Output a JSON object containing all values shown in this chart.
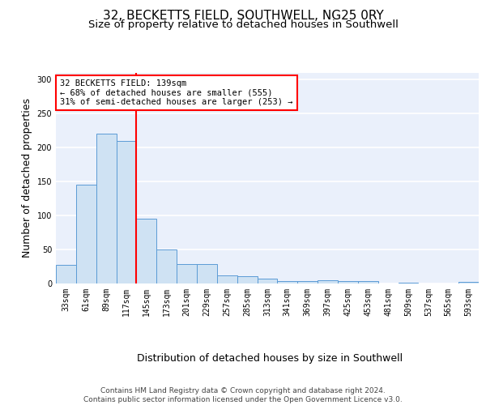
{
  "title1": "32, BECKETTS FIELD, SOUTHWELL, NG25 0RY",
  "title2": "Size of property relative to detached houses in Southwell",
  "xlabel": "Distribution of detached houses by size in Southwell",
  "ylabel": "Number of detached properties",
  "bar_labels": [
    "33sqm",
    "61sqm",
    "89sqm",
    "117sqm",
    "145sqm",
    "173sqm",
    "201sqm",
    "229sqm",
    "257sqm",
    "285sqm",
    "313sqm",
    "341sqm",
    "369sqm",
    "397sqm",
    "425sqm",
    "453sqm",
    "481sqm",
    "509sqm",
    "537sqm",
    "565sqm",
    "593sqm"
  ],
  "bar_values": [
    28,
    145,
    221,
    210,
    95,
    50,
    29,
    29,
    12,
    11,
    7,
    4,
    4,
    5,
    4,
    3,
    0,
    1,
    0,
    0,
    2
  ],
  "bar_color": "#cfe2f3",
  "bar_edge_color": "#5b9bd5",
  "vline_color": "red",
  "annotation_text": "32 BECKETTS FIELD: 139sqm\n← 68% of detached houses are smaller (555)\n31% of semi-detached houses are larger (253) →",
  "annotation_box_color": "white",
  "annotation_box_edge": "red",
  "ylim": [
    0,
    310
  ],
  "yticks": [
    0,
    50,
    100,
    150,
    200,
    250,
    300
  ],
  "background_color": "#eaf0fb",
  "grid_color": "white",
  "footer": "Contains HM Land Registry data © Crown copyright and database right 2024.\nContains public sector information licensed under the Open Government Licence v3.0.",
  "title_fontsize": 11,
  "subtitle_fontsize": 9.5,
  "tick_fontsize": 7,
  "ylabel_fontsize": 9,
  "xlabel_fontsize": 9,
  "annotation_fontsize": 7.5
}
